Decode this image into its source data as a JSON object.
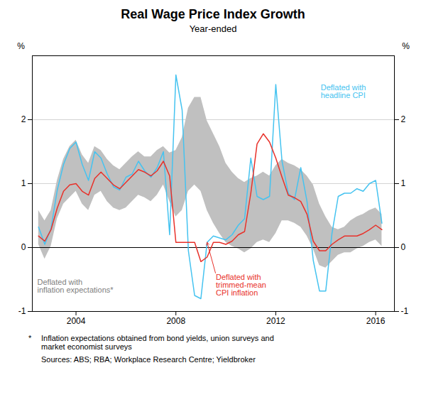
{
  "chart_data": {
    "type": "line",
    "title": "Real Wage Price Index Growth",
    "subtitle": "Year-ended",
    "ylabel": "%",
    "y2label": "%",
    "x": [
      2002.5,
      2002.75,
      2003.0,
      2003.25,
      2003.5,
      2003.75,
      2004.0,
      2004.25,
      2004.5,
      2004.75,
      2005.0,
      2005.25,
      2005.5,
      2005.75,
      2006.0,
      2006.25,
      2006.5,
      2006.75,
      2007.0,
      2007.25,
      2007.5,
      2007.75,
      2008.0,
      2008.25,
      2008.5,
      2008.75,
      2009.0,
      2009.25,
      2009.5,
      2009.75,
      2010.0,
      2010.25,
      2010.5,
      2010.75,
      2011.0,
      2011.25,
      2011.5,
      2011.75,
      2012.0,
      2012.25,
      2012.5,
      2012.75,
      2013.0,
      2013.25,
      2013.5,
      2013.75,
      2014.0,
      2014.25,
      2014.5,
      2014.75,
      2015.0,
      2015.25,
      2015.5,
      2015.75,
      2016.0,
      2016.25
    ],
    "series": [
      {
        "type": "area",
        "color": "#C0C0C0",
        "upper": [
          0.58,
          0.42,
          0.58,
          1.05,
          1.38,
          1.58,
          1.68,
          1.45,
          1.32,
          1.58,
          1.52,
          1.38,
          1.28,
          1.22,
          1.32,
          1.42,
          1.5,
          1.42,
          1.42,
          1.52,
          1.58,
          1.48,
          1.52,
          1.72,
          2.18,
          2.35,
          2.35,
          1.98,
          1.78,
          1.58,
          1.32,
          1.18,
          1.08,
          1.02,
          1.08,
          1.12,
          1.18,
          1.12,
          1.28,
          1.38,
          1.32,
          1.28,
          1.22,
          1.12,
          0.98,
          0.68,
          0.48,
          0.32,
          0.28,
          0.32,
          0.42,
          0.48,
          0.52,
          0.58,
          0.62,
          0.52
        ],
        "lower": [
          0.05,
          -0.18,
          0.02,
          0.45,
          0.68,
          0.78,
          0.88,
          0.68,
          0.58,
          0.82,
          0.88,
          0.72,
          0.62,
          0.58,
          0.62,
          0.72,
          0.82,
          0.78,
          0.72,
          0.82,
          0.98,
          0.72,
          0.48,
          0.58,
          0.88,
          0.98,
          0.88,
          0.58,
          0.38,
          0.22,
          0.08,
          0.02,
          -0.02,
          -0.08,
          -0.02,
          0.08,
          0.12,
          0.08,
          0.22,
          0.42,
          0.42,
          0.38,
          0.32,
          0.18,
          -0.02,
          -0.28,
          -0.32,
          -0.22,
          -0.12,
          -0.08,
          -0.08,
          -0.02,
          0.02,
          0.08,
          0.12,
          0.02
        ]
      },
      {
        "type": "line",
        "color": "#45C3F0",
        "values": [
          0.32,
          0.05,
          0.3,
          0.9,
          1.3,
          1.55,
          1.65,
          1.3,
          1.05,
          1.5,
          1.4,
          1.15,
          0.95,
          0.9,
          1.1,
          1.15,
          1.35,
          1.2,
          1.1,
          1.25,
          1.5,
          0.2,
          2.7,
          2.15,
          -0.05,
          -0.75,
          -0.8,
          0.08,
          0.18,
          0.15,
          0.12,
          0.2,
          0.35,
          0.45,
          1.4,
          0.8,
          0.75,
          0.8,
          2.55,
          1.35,
          0.85,
          0.75,
          1.25,
          0.72,
          -0.2,
          -0.68,
          -0.68,
          0.22,
          0.8,
          0.85,
          0.85,
          0.92,
          0.88,
          1.0,
          1.05,
          0.38
        ]
      },
      {
        "type": "line",
        "color": "#E8312A",
        "values": [
          0.18,
          0.1,
          0.28,
          0.62,
          0.88,
          0.98,
          1.0,
          0.88,
          0.82,
          1.08,
          1.18,
          1.08,
          0.98,
          0.92,
          1.02,
          1.12,
          1.22,
          1.18,
          1.12,
          1.2,
          1.35,
          1.12,
          0.08,
          0.08,
          0.08,
          0.08,
          -0.22,
          -0.15,
          0.08,
          0.08,
          0.05,
          0.1,
          0.2,
          0.25,
          0.85,
          1.62,
          1.78,
          1.65,
          1.4,
          1.1,
          0.82,
          0.78,
          0.72,
          0.52,
          0.1,
          -0.05,
          -0.05,
          0.05,
          0.12,
          0.18,
          0.18,
          0.18,
          0.22,
          0.28,
          0.35,
          0.28
        ]
      }
    ],
    "hlines": [
      0
    ],
    "xlim": [
      2002.25,
      2016.75
    ],
    "xticks": [
      2004,
      2008,
      2012,
      2016
    ],
    "ylim": [
      -1.0,
      3.0
    ],
    "yticks": [
      -1,
      0,
      1,
      2
    ],
    "y2lim": [
      -1.0,
      3.0
    ],
    "y2ticks": [
      -1,
      0,
      1,
      2
    ],
    "grid": true,
    "annotations": [
      {
        "text": "Deflated with\nheadline CPI",
        "x": 2013.8,
        "y": 2.55,
        "color": "#45C3F0"
      },
      {
        "text": "Deflated with\ntrimmed-mean\nCPI inflation",
        "x": 2009.6,
        "y": -0.42,
        "color": "#E8312A",
        "arrow_x": 2009.25,
        "arrow_y": 0.08
      },
      {
        "text": "Deflated with\ninflation expectations*",
        "x": 2002.45,
        "y": -0.5,
        "color": "gray"
      }
    ],
    "footnotes": [
      {
        "symbol": "*",
        "text": "Inflation expectations obtained from bond yields, union surveys and\nmarket economist surveys"
      },
      {
        "text": "Sources: ABS; RBA; Workplace Research Centre; Yieldbroker"
      }
    ]
  }
}
